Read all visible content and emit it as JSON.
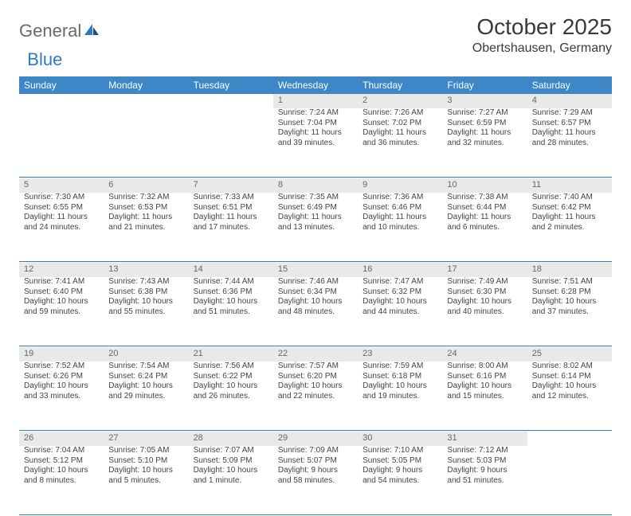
{
  "brand": {
    "part1": "General",
    "part2": "Blue"
  },
  "title": "October 2025",
  "location": "Obertshausen, Germany",
  "colors": {
    "header_bg": "#3d87c7",
    "header_text": "#ffffff",
    "daynum_bg": "#e9e9e9",
    "rule": "#2d7bc0",
    "brand_gray": "#6a6a6a",
    "brand_blue": "#2d7bc0"
  },
  "weekdays": [
    "Sunday",
    "Monday",
    "Tuesday",
    "Wednesday",
    "Thursday",
    "Friday",
    "Saturday"
  ],
  "weeks": [
    [
      null,
      null,
      null,
      {
        "n": "1",
        "sr": "7:24 AM",
        "ss": "7:04 PM",
        "dl": "11 hours and 39 minutes."
      },
      {
        "n": "2",
        "sr": "7:26 AM",
        "ss": "7:02 PM",
        "dl": "11 hours and 36 minutes."
      },
      {
        "n": "3",
        "sr": "7:27 AM",
        "ss": "6:59 PM",
        "dl": "11 hours and 32 minutes."
      },
      {
        "n": "4",
        "sr": "7:29 AM",
        "ss": "6:57 PM",
        "dl": "11 hours and 28 minutes."
      }
    ],
    [
      {
        "n": "5",
        "sr": "7:30 AM",
        "ss": "6:55 PM",
        "dl": "11 hours and 24 minutes."
      },
      {
        "n": "6",
        "sr": "7:32 AM",
        "ss": "6:53 PM",
        "dl": "11 hours and 21 minutes."
      },
      {
        "n": "7",
        "sr": "7:33 AM",
        "ss": "6:51 PM",
        "dl": "11 hours and 17 minutes."
      },
      {
        "n": "8",
        "sr": "7:35 AM",
        "ss": "6:49 PM",
        "dl": "11 hours and 13 minutes."
      },
      {
        "n": "9",
        "sr": "7:36 AM",
        "ss": "6:46 PM",
        "dl": "11 hours and 10 minutes."
      },
      {
        "n": "10",
        "sr": "7:38 AM",
        "ss": "6:44 PM",
        "dl": "11 hours and 6 minutes."
      },
      {
        "n": "11",
        "sr": "7:40 AM",
        "ss": "6:42 PM",
        "dl": "11 hours and 2 minutes."
      }
    ],
    [
      {
        "n": "12",
        "sr": "7:41 AM",
        "ss": "6:40 PM",
        "dl": "10 hours and 59 minutes."
      },
      {
        "n": "13",
        "sr": "7:43 AM",
        "ss": "6:38 PM",
        "dl": "10 hours and 55 minutes."
      },
      {
        "n": "14",
        "sr": "7:44 AM",
        "ss": "6:36 PM",
        "dl": "10 hours and 51 minutes."
      },
      {
        "n": "15",
        "sr": "7:46 AM",
        "ss": "6:34 PM",
        "dl": "10 hours and 48 minutes."
      },
      {
        "n": "16",
        "sr": "7:47 AM",
        "ss": "6:32 PM",
        "dl": "10 hours and 44 minutes."
      },
      {
        "n": "17",
        "sr": "7:49 AM",
        "ss": "6:30 PM",
        "dl": "10 hours and 40 minutes."
      },
      {
        "n": "18",
        "sr": "7:51 AM",
        "ss": "6:28 PM",
        "dl": "10 hours and 37 minutes."
      }
    ],
    [
      {
        "n": "19",
        "sr": "7:52 AM",
        "ss": "6:26 PM",
        "dl": "10 hours and 33 minutes."
      },
      {
        "n": "20",
        "sr": "7:54 AM",
        "ss": "6:24 PM",
        "dl": "10 hours and 29 minutes."
      },
      {
        "n": "21",
        "sr": "7:56 AM",
        "ss": "6:22 PM",
        "dl": "10 hours and 26 minutes."
      },
      {
        "n": "22",
        "sr": "7:57 AM",
        "ss": "6:20 PM",
        "dl": "10 hours and 22 minutes."
      },
      {
        "n": "23",
        "sr": "7:59 AM",
        "ss": "6:18 PM",
        "dl": "10 hours and 19 minutes."
      },
      {
        "n": "24",
        "sr": "8:00 AM",
        "ss": "6:16 PM",
        "dl": "10 hours and 15 minutes."
      },
      {
        "n": "25",
        "sr": "8:02 AM",
        "ss": "6:14 PM",
        "dl": "10 hours and 12 minutes."
      }
    ],
    [
      {
        "n": "26",
        "sr": "7:04 AM",
        "ss": "5:12 PM",
        "dl": "10 hours and 8 minutes."
      },
      {
        "n": "27",
        "sr": "7:05 AM",
        "ss": "5:10 PM",
        "dl": "10 hours and 5 minutes."
      },
      {
        "n": "28",
        "sr": "7:07 AM",
        "ss": "5:09 PM",
        "dl": "10 hours and 1 minute."
      },
      {
        "n": "29",
        "sr": "7:09 AM",
        "ss": "5:07 PM",
        "dl": "9 hours and 58 minutes."
      },
      {
        "n": "30",
        "sr": "7:10 AM",
        "ss": "5:05 PM",
        "dl": "9 hours and 54 minutes."
      },
      {
        "n": "31",
        "sr": "7:12 AM",
        "ss": "5:03 PM",
        "dl": "9 hours and 51 minutes."
      },
      null
    ]
  ],
  "labels": {
    "sunrise": "Sunrise:",
    "sunset": "Sunset:",
    "daylight": "Daylight:"
  }
}
